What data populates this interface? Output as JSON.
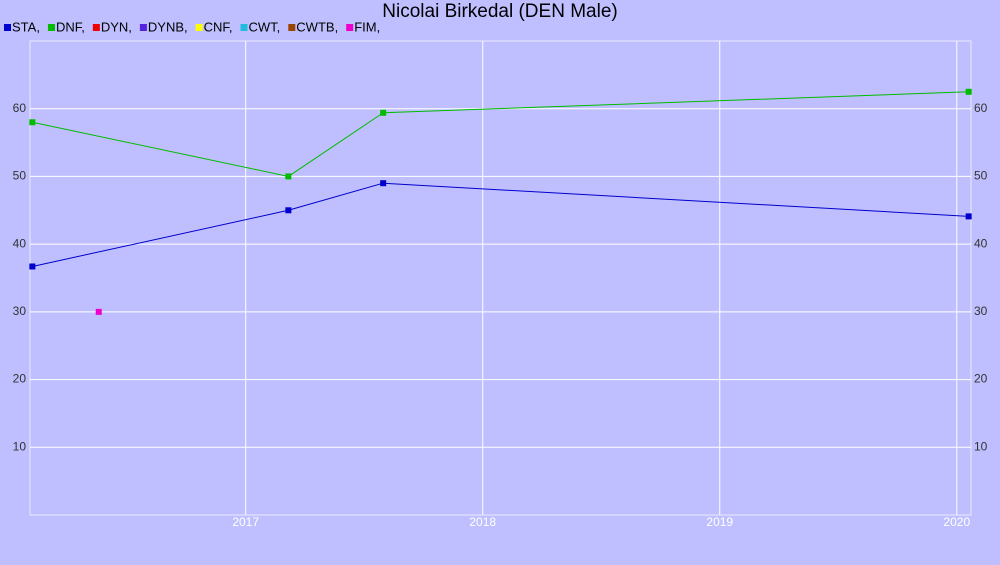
{
  "chart_data": {
    "type": "line",
    "title": "Nicolai Birkedal (DEN Male)",
    "xlim": [
      2016.09,
      2020.06
    ],
    "xticks": [
      2017,
      2018,
      2019,
      2020
    ],
    "ylim": [
      0,
      70
    ],
    "yticks": [
      10,
      20,
      30,
      40,
      50,
      60
    ],
    "grid": true,
    "series": [
      {
        "name": "STA,",
        "color": "#0000cc",
        "x": [
          2016.1,
          2017.18,
          2017.58,
          2020.05
        ],
        "values": [
          36.7,
          45,
          49,
          44.1
        ]
      },
      {
        "name": "DNF,",
        "color": "#00bb00",
        "x": [
          2016.1,
          2017.18,
          2017.58,
          2020.05
        ],
        "values": [
          58,
          50,
          59.4,
          62.5
        ]
      },
      {
        "name": "DYN,",
        "color": "#ee0000",
        "x": [],
        "values": []
      },
      {
        "name": "DYNB,",
        "color": "#5522dd",
        "x": [],
        "values": []
      },
      {
        "name": "CNF,",
        "color": "#ffff00",
        "x": [],
        "values": []
      },
      {
        "name": "CWT,",
        "color": "#22bbdd",
        "x": [],
        "values": []
      },
      {
        "name": "CWTB,",
        "color": "#994400",
        "x": [],
        "values": []
      },
      {
        "name": "FIM,",
        "color": "#ee00cc",
        "x": [
          2016.38
        ],
        "values": [
          30
        ]
      }
    ]
  }
}
